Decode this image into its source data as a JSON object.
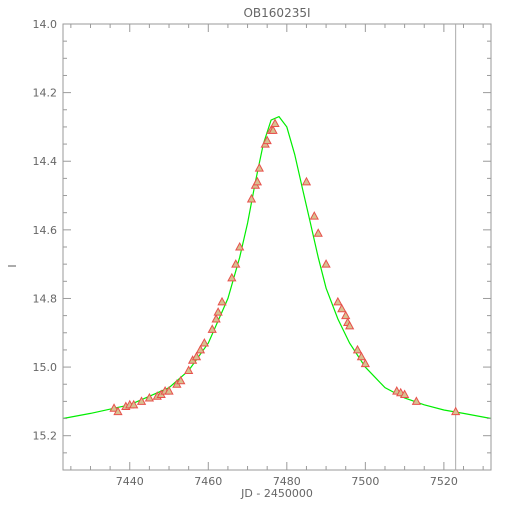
{
  "chart_data": {
    "type": "scatter",
    "title": "OB160235I",
    "xlabel": "JD - 2450000",
    "ylabel": "I",
    "xlim": [
      7423,
      7532
    ],
    "ylim": [
      15.3,
      14.0
    ],
    "y_inverted": true,
    "grid": false,
    "x_ticks": [
      7440,
      7460,
      7480,
      7500,
      7520
    ],
    "x_tick_labels": [
      "7440",
      "7460",
      "7480",
      "7500",
      "7520"
    ],
    "y_ticks": [
      14.0,
      14.2,
      14.4,
      14.6,
      14.8,
      15.0,
      15.2
    ],
    "y_tick_labels": [
      "14.0",
      "14.2",
      "14.4",
      "14.6",
      "14.8",
      "15.0",
      "15.2"
    ],
    "vertical_line_x": 7523,
    "colors": {
      "axes": "#9a9a9a",
      "text": "#666666",
      "model": "#00ee00",
      "marker_edge": "#e8504c",
      "marker_fill": "#d8c090",
      "vline": "#aaaaaa"
    },
    "model": {
      "x": [
        7423,
        7430,
        7440,
        7450,
        7455,
        7460,
        7465,
        7468,
        7470,
        7472,
        7474,
        7476,
        7478,
        7480,
        7482,
        7484,
        7486,
        7488,
        7490,
        7493,
        7496,
        7500,
        7505,
        7510,
        7515,
        7520,
        7525,
        7532
      ],
      "y": [
        15.15,
        15.135,
        15.11,
        15.06,
        15.01,
        14.93,
        14.8,
        14.68,
        14.58,
        14.46,
        14.35,
        14.28,
        14.27,
        14.3,
        14.38,
        14.48,
        14.58,
        14.68,
        14.77,
        14.86,
        14.93,
        15.0,
        15.06,
        15.09,
        15.11,
        15.125,
        15.135,
        15.15
      ]
    },
    "series": [
      {
        "x": [
          7436,
          7437,
          7439,
          7440,
          7441,
          7443,
          7445,
          7447,
          7448,
          7449,
          7450,
          7452,
          7453,
          7455,
          7456,
          7457,
          7458,
          7459,
          7461,
          7462,
          7462.5,
          7463.5,
          7466,
          7467,
          7468,
          7471,
          7472,
          7472.5,
          7473,
          7474.5,
          7475,
          7476,
          7476.5,
          7477,
          7485,
          7487,
          7488,
          7490,
          7493,
          7494,
          7495,
          7495.5,
          7496,
          7498,
          7499,
          7500,
          7508,
          7509,
          7510,
          7513,
          7523
        ],
        "y": [
          15.12,
          15.13,
          15.115,
          15.11,
          15.11,
          15.1,
          15.09,
          15.085,
          15.08,
          15.07,
          15.07,
          15.05,
          15.04,
          15.01,
          14.98,
          14.97,
          14.95,
          14.93,
          14.89,
          14.86,
          14.84,
          14.81,
          14.74,
          14.7,
          14.65,
          14.51,
          14.47,
          14.46,
          14.42,
          14.35,
          14.34,
          14.31,
          14.31,
          14.29,
          14.46,
          14.56,
          14.61,
          14.7,
          14.81,
          14.83,
          14.85,
          14.87,
          14.88,
          14.95,
          14.97,
          14.99,
          15.07,
          15.075,
          15.08,
          15.1,
          15.13
        ]
      }
    ]
  }
}
